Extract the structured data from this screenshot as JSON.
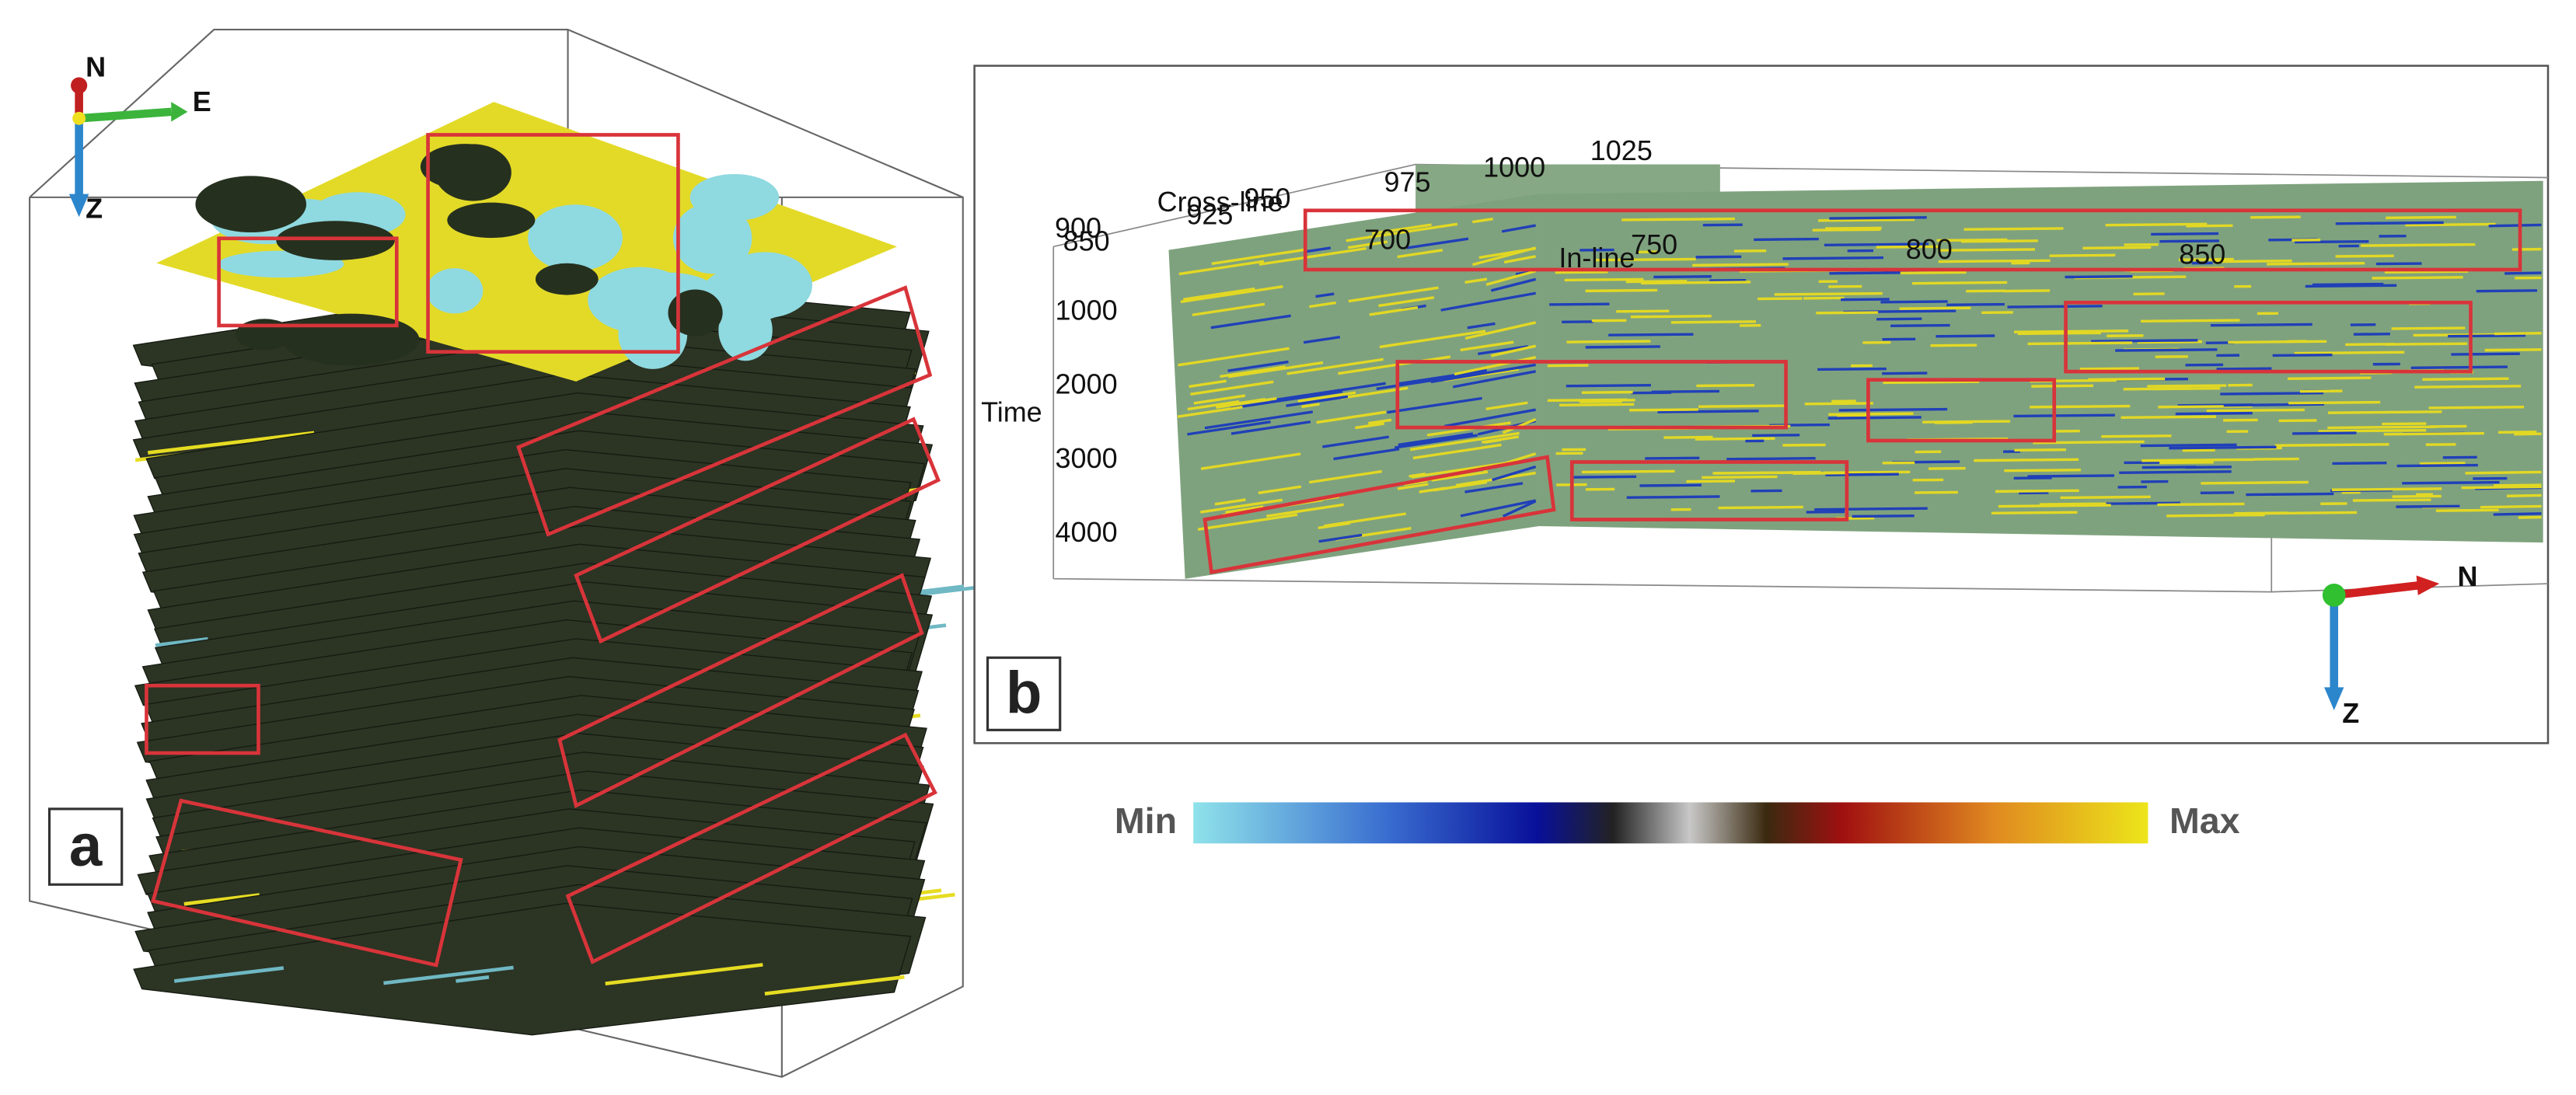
{
  "panel_a": {
    "label": "a",
    "compass": {
      "north": "N",
      "east": "E",
      "down": "Z"
    }
  },
  "panel_b": {
    "label": "b",
    "cross_line": {
      "title": "Cross-line",
      "ticks": [
        "850",
        "900",
        "925",
        "950",
        "975",
        "1000",
        "1025"
      ]
    },
    "in_line": {
      "title": "In-line",
      "ticks": [
        "700",
        "750",
        "800",
        "850"
      ]
    },
    "time": {
      "title": "Time",
      "ticks": [
        "1000",
        "2000",
        "3000",
        "4000"
      ]
    },
    "compass": {
      "north": "N",
      "down": "Z"
    }
  },
  "colorbar": {
    "min_label": "Min",
    "max_label": "Max"
  }
}
